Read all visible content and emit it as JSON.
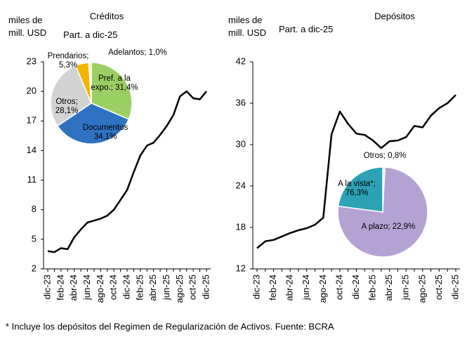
{
  "chart_data": [
    {
      "type": "line",
      "title": "Créditos",
      "ylabel": "miles de mill. USD",
      "subtitle": "Part. a dic-25",
      "categories": [
        "dic-23",
        null,
        "feb-24",
        null,
        "abr-24",
        null,
        "jun-24",
        null,
        "ago-24",
        null,
        "oct-24",
        null,
        "dic-24",
        null,
        "feb-25",
        null,
        "abr-25",
        null,
        "jun-25",
        null,
        "ago-25",
        null,
        "oct-25",
        null,
        "dic-25"
      ],
      "series": [
        {
          "name": "Créditos",
          "color": "#000000",
          "values": [
            3.8,
            3.7,
            4.1,
            4.0,
            5.2,
            6.0,
            6.7,
            6.9,
            7.1,
            7.4,
            8.0,
            9.0,
            10.0,
            11.8,
            13.5,
            14.5,
            14.8,
            15.6,
            16.5,
            17.6,
            19.5,
            20.0,
            19.3,
            19.2,
            20.0
          ]
        }
      ],
      "ylim": [
        2,
        23
      ],
      "yticks": [
        2,
        5,
        8,
        11,
        14,
        17,
        20,
        23
      ],
      "grid": false
    },
    {
      "type": "pie",
      "categories": [
        "Pref. a la expo.;",
        "Documentos",
        "Otros;",
        "Prendarios;",
        "Adelantos;"
      ],
      "values": [
        31.4,
        34.1,
        28.1,
        5.3,
        1.0
      ],
      "value_labels": [
        "31,4%",
        "34,1%",
        "28,1%",
        "5,3%",
        "1,0%"
      ],
      "colors": [
        "#9ccf63",
        "#2f72c2",
        "#d3d3d3",
        "#f4b400",
        "#f3f0c8"
      ]
    },
    {
      "type": "line",
      "title": "Depósitos",
      "ylabel": "miles de mill. USD",
      "subtitle": "Part. a dic-25",
      "categories": [
        "dic-23",
        null,
        "feb-24",
        null,
        "abr-24",
        null,
        "jun-24",
        null,
        "ago-24",
        null,
        "oct-24",
        null,
        "dic-24",
        null,
        "feb-25",
        null,
        "abr-25",
        null,
        "jun-25",
        null,
        "ago-25",
        null,
        "oct-25",
        null,
        "dic-25"
      ],
      "series": [
        {
          "name": "Depósitos",
          "color": "#000000",
          "values": [
            15.0,
            16.0,
            16.2,
            16.7,
            17.2,
            17.6,
            17.9,
            18.4,
            19.4,
            31.5,
            34.8,
            33.0,
            31.6,
            31.4,
            30.6,
            29.5,
            30.5,
            30.6,
            31.1,
            32.7,
            32.5,
            34.2,
            35.3,
            36.0,
            37.2
          ]
        }
      ],
      "ylim": [
        12,
        42
      ],
      "yticks": [
        12,
        18,
        24,
        30,
        36,
        42
      ],
      "grid": false
    },
    {
      "type": "pie",
      "categories": [
        "Otros;",
        "A la vista*;",
        "A plazo;"
      ],
      "values": [
        0.8,
        76.3,
        22.9
      ],
      "value_labels": [
        "0,8%",
        "76,3%",
        "22,9%"
      ],
      "colors": [
        "#e0e0e0",
        "#b3a2d2",
        "#2ba3b5"
      ]
    }
  ],
  "footnote": "* Incluye los depósitos del Regimen de Regularización de Activos. Fuente: BCRA"
}
